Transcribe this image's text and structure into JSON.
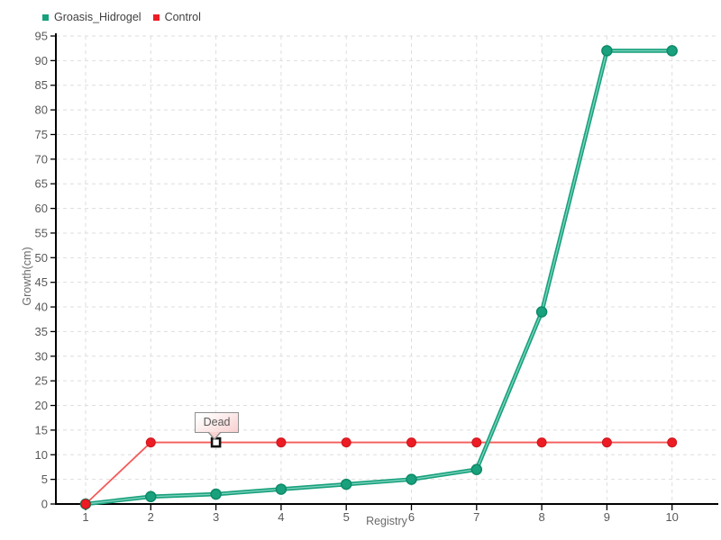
{
  "chart_data": {
    "type": "line",
    "title": "",
    "xlabel": "Registry",
    "ylabel": "Growth(cm)",
    "x": [
      1,
      2,
      3,
      4,
      5,
      6,
      7,
      8,
      9,
      10
    ],
    "yticks": [
      0,
      5,
      10,
      15,
      20,
      25,
      30,
      35,
      40,
      45,
      50,
      55,
      60,
      65,
      70,
      75,
      80,
      85,
      90,
      95
    ],
    "ylim": [
      0,
      95
    ],
    "grid": "dashed-horizontal-and-vertical",
    "legend_position": "top-left",
    "series": [
      {
        "name": "Groasis_Hidrogel",
        "color": "#18a17c",
        "line_core_color": "#7cd2bd",
        "marker": "circle",
        "marker_color": "#18a17c",
        "marker_edge_color": "#0e8a68",
        "values": [
          0,
          1.5,
          2,
          3,
          4,
          5,
          7,
          39,
          92,
          92
        ]
      },
      {
        "name": "Control",
        "color": "#ed1c24",
        "line_color": "#f45a5a",
        "marker": "circle",
        "marker_color": "#ed1c24",
        "marker_edge_color": "#c9151c",
        "values": [
          0,
          12.5,
          12.5,
          12.5,
          12.5,
          12.5,
          12.5,
          12.5,
          12.5,
          12.5
        ]
      }
    ],
    "annotation": {
      "text": "Dead",
      "series": "Control",
      "x": 3,
      "y": 12.5,
      "marker": "white-square-black-border"
    },
    "colors": {
      "grid": "#dedede",
      "axis": "#000000",
      "tick_label": "#595959",
      "axis_label": "#6a6a6a",
      "legend_text": "#3f3f3f",
      "tooltip_border": "#8f8f8f",
      "tooltip_bg_from": "#ffffff",
      "tooltip_bg_to": "#f9d2d2",
      "tooltip_text": "#5a5a5a"
    }
  }
}
